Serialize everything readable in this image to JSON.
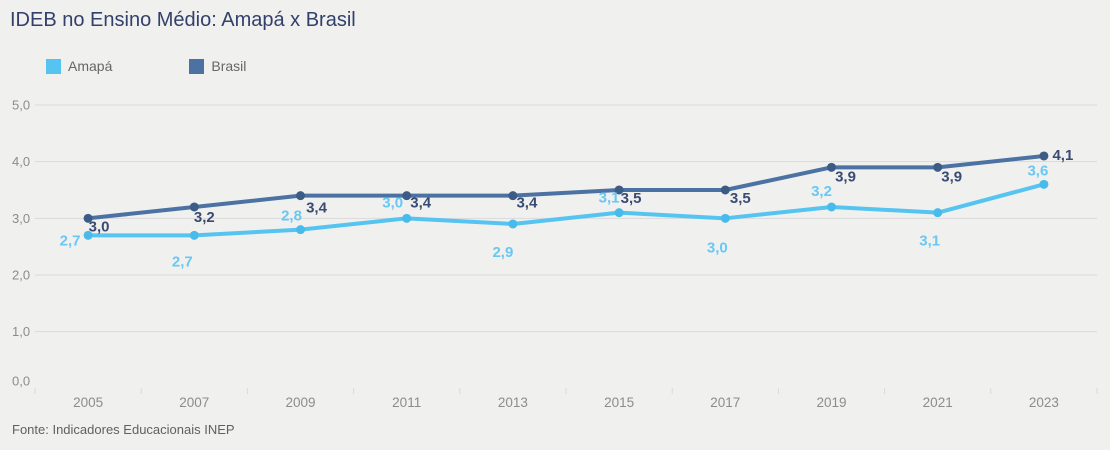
{
  "chart_data": {
    "type": "line",
    "title": "IDEB no Ensino Médio: Amapá x Brasil",
    "categories": [
      "2005",
      "2007",
      "2009",
      "2011",
      "2013",
      "2015",
      "2017",
      "2019",
      "2021",
      "2023"
    ],
    "series": [
      {
        "name": "Amapá",
        "color": "#56C4F0",
        "marker_color": "#48BBEB",
        "label_color": "#69C8F3",
        "values": [
          2.7,
          2.7,
          2.8,
          3.0,
          2.9,
          3.1,
          3.0,
          3.2,
          3.1,
          3.6
        ]
      },
      {
        "name": "Brasil",
        "color": "#4B72A2",
        "marker_color": "#3D5C85",
        "label_color": "#3A4B73",
        "values": [
          3.0,
          3.2,
          3.4,
          3.4,
          3.4,
          3.5,
          3.5,
          3.9,
          3.9,
          4.1
        ]
      }
    ],
    "y_axis": {
      "tick_values": [
        0,
        1,
        2,
        3,
        4,
        5
      ],
      "ylim": [
        0,
        5
      ],
      "decimal_separator": ","
    },
    "grid": true,
    "value_labels": true,
    "legend_position": "top-left",
    "source": "Fonte: Indicadores Educacionais INEP",
    "colors": {
      "background": "#F0F0EF",
      "grid": "#DADADA",
      "axis_text": "#8C8C8C",
      "title": "#32406A",
      "legend_text": "#666666",
      "source_text": "#606060"
    }
  }
}
